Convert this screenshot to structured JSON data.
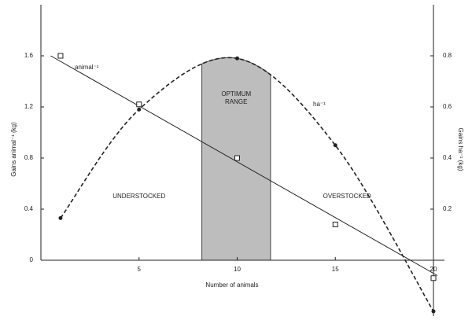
{
  "chart_data": {
    "type": "line",
    "x_label": "Number of animals",
    "y_label": "Gains animal⁻¹ (kg)",
    "y2_label": "Gains ha⁻¹ (kg)",
    "xlim": [
      0,
      20
    ],
    "xticks": [
      5,
      10,
      15,
      20
    ],
    "ylim": [
      0,
      2.0
    ],
    "yticks": [
      0,
      0.4,
      0.8,
      1.2,
      1.6
    ],
    "y2lim": [
      0,
      1.0
    ],
    "y2ticks": [
      0.2,
      0.4,
      0.6,
      0.8
    ],
    "series": [
      {
        "name": "animal⁻¹",
        "color": "#222222",
        "marker": "square",
        "axis": "y",
        "x": [
          1,
          5,
          10,
          15,
          20
        ],
        "values": [
          1.6,
          1.22,
          0.8,
          0.28,
          -0.14
        ],
        "trendline": {
          "x": [
            0.5,
            20.2
          ],
          "values": [
            1.6,
            -0.12
          ]
        }
      },
      {
        "name": "ha⁻¹",
        "color": "#222222",
        "marker": "circle",
        "axis": "y2",
        "dashed": true,
        "x": [
          1,
          5,
          10,
          15,
          20
        ],
        "values": [
          0.165,
          0.59,
          0.79,
          0.45,
          -0.2
        ]
      }
    ],
    "shaded_range": {
      "x": [
        8.2,
        11.7
      ],
      "color": "#bdbdbd",
      "label": [
        "OPTIMUM",
        "RANGE"
      ]
    },
    "annotations": [
      {
        "text": "UNDERSTOCKED",
        "x": 5,
        "y": 0.5
      },
      {
        "text": "OVERSTOCKED",
        "x": 15.6,
        "y": 0.5
      }
    ]
  }
}
